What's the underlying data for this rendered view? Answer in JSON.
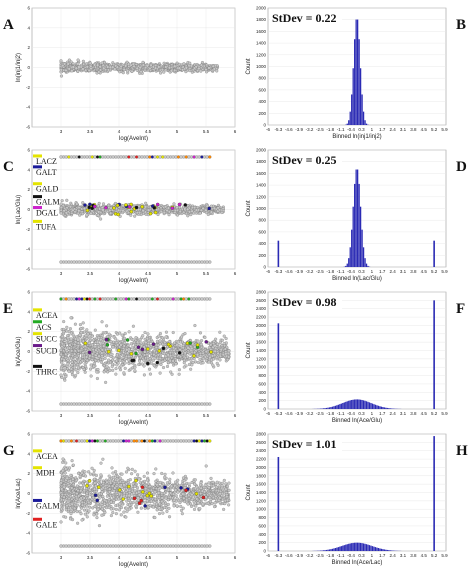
{
  "figure": {
    "rows": [
      {
        "ma": {
          "letter": "A",
          "ylabel": "ln(inj1/inj2)",
          "xlabel": "log(AveInt)",
          "xlim": [
            2.5,
            6.0
          ],
          "ylim": [
            -6,
            6
          ],
          "xticks": [
            "3",
            "3.5",
            "4",
            "4.5",
            "5",
            "5.5",
            "6"
          ],
          "yticks": [
            "6",
            "4",
            "2",
            "0",
            "-2",
            "-4",
            "-6"
          ],
          "cloud": {
            "x0": 3.0,
            "x1": 5.7,
            "spread0": 0.45,
            "spread1": 0.3,
            "count": 900
          },
          "top_row_y": null,
          "bottom_row_y": null,
          "genes": []
        },
        "hist": {
          "letter": "B",
          "stdev_text": "StDev = 0.22",
          "ylabel": "Count",
          "xlabel": "Binned ln(inj1/inj2)",
          "xticks": [
            "-6",
            "-5.3",
            "-4.6",
            "-3.9",
            "-3.2",
            "-2.5",
            "-1.8",
            "-1.1",
            "-0.4",
            "0.3",
            "1",
            "1.7",
            "2.4",
            "3.1",
            "3.8",
            "4.5",
            "5.2",
            "5.9"
          ],
          "xlim": [
            -6,
            6
          ],
          "ylim": [
            0,
            2000
          ],
          "yticks": [
            "2000",
            "1800",
            "1600",
            "1400",
            "1200",
            "1000",
            "800",
            "600",
            "400",
            "200",
            "0"
          ],
          "sd": 0.22,
          "peak": 1850,
          "edge_bars": []
        }
      },
      {
        "ma": {
          "letter": "C",
          "ylabel": "ln(Lac/Glu)",
          "xlabel": "log(AveInt)",
          "xlim": [
            2.5,
            6.0
          ],
          "ylim": [
            -6,
            6
          ],
          "xticks": [
            "3",
            "3.5",
            "4",
            "4.5",
            "5",
            "5.5",
            "6"
          ],
          "yticks": [
            "6",
            "4",
            "2",
            "0",
            "-2",
            "-4",
            "-6"
          ],
          "cloud": {
            "x0": 3.0,
            "x1": 5.8,
            "spread0": 0.5,
            "spread1": 0.35,
            "count": 900
          },
          "top_row_y": 5.3,
          "bottom_row_y": -5.3,
          "genes": [
            {
              "name": "LACZ",
              "y": 5.4,
              "color": "#e4e400"
            },
            {
              "name": "GALT",
              "y": 4.3,
              "color": "#1a1a9a"
            },
            {
              "name": "GALD",
              "y": 2.6,
              "color": "#e4e400"
            },
            {
              "name": "GALM",
              "y": 1.3,
              "color": "#111111"
            },
            {
              "name": "DGAL",
              "y": 0.2,
              "color": "#cc22cc"
            },
            {
              "name": "TUFA",
              "y": -1.2,
              "color": "#e4e400"
            }
          ]
        },
        "hist": {
          "letter": "D",
          "stdev_text": "StDev = 0.25",
          "ylabel": "Count",
          "xlabel": "Binned ln(Lac/Glu)",
          "xticks": [
            "-6",
            "-5.3",
            "-4.6",
            "-3.9",
            "-3.2",
            "-2.5",
            "-1.8",
            "-1.1",
            "-0.4",
            "0.3",
            "1",
            "1.7",
            "2.4",
            "3.1",
            "3.8",
            "4.5",
            "5.2",
            "5.9"
          ],
          "xlim": [
            -6,
            6
          ],
          "ylim": [
            0,
            2000
          ],
          "yticks": [
            "2000",
            "1800",
            "1600",
            "1400",
            "1200",
            "1000",
            "800",
            "600",
            "400",
            "200",
            "0"
          ],
          "sd": 0.25,
          "peak": 1700,
          "edge_bars": [
            {
              "x": -5.3,
              "count": 450
            },
            {
              "x": 5.2,
              "count": 450
            }
          ]
        }
      },
      {
        "ma": {
          "letter": "E",
          "ylabel": "ln(Ace/Glu)",
          "xlabel": "log(AveInt)",
          "xlim": [
            2.5,
            6.0
          ],
          "ylim": [
            -6,
            6
          ],
          "xticks": [
            "3",
            "3.5",
            "4",
            "4.5",
            "5",
            "5.5",
            "6"
          ],
          "yticks": [
            "6",
            "4",
            "2",
            "0",
            "-2",
            "-4",
            "-6"
          ],
          "cloud": {
            "x0": 3.0,
            "x1": 5.9,
            "spread0": 2.2,
            "spread1": 1.0,
            "count": 1400
          },
          "top_row_y": 5.3,
          "bottom_row_y": -5.3,
          "genes": [
            {
              "name": "ACEA",
              "y": 4.2,
              "color": "#e4e400"
            },
            {
              "name": "ACS",
              "y": 3.0,
              "color": "#22aa22"
            },
            {
              "name": "SUCC",
              "y": 1.8,
              "color": "#e4e400"
            },
            {
              "name": "SUCD",
              "y": 0.6,
              "color": "#6a1a8a"
            },
            {
              "name": "THRC",
              "y": -1.5,
              "color": "#111111"
            }
          ]
        },
        "hist": {
          "letter": "F",
          "stdev_text": "StDev = 0.98",
          "ylabel": "Count",
          "xlabel": "Binned ln(Ace/Glu)",
          "xticks": [
            "-6",
            "-5.3",
            "-4.6",
            "-3.9",
            "-3.2",
            "-2.5",
            "-1.8",
            "-1.1",
            "-0.4",
            "0.3",
            "1",
            "1.7",
            "2.4",
            "3.1",
            "3.8",
            "4.5",
            "5.2",
            "5.9"
          ],
          "xlim": [
            -6,
            6
          ],
          "ylim": [
            0,
            2800
          ],
          "yticks": [
            "2800",
            "2600",
            "2400",
            "2200",
            "2000",
            "1800",
            "1600",
            "1400",
            "1200",
            "1000",
            "800",
            "600",
            "400",
            "200",
            "0"
          ],
          "sd": 0.98,
          "peak": 230,
          "edge_bars": [
            {
              "x": -5.3,
              "count": 2050
            },
            {
              "x": 5.2,
              "count": 2600
            }
          ]
        }
      },
      {
        "ma": {
          "letter": "G",
          "ylabel": "ln(Ace/Lac)",
          "xlabel": "log(AveInt)",
          "xlim": [
            2.5,
            6.0
          ],
          "ylim": [
            -6,
            6
          ],
          "xticks": [
            "3",
            "3.5",
            "4",
            "4.5",
            "5",
            "5.5",
            "6"
          ],
          "yticks": [
            "6",
            "4",
            "2",
            "0",
            "-2",
            "-4",
            "-6"
          ],
          "cloud": {
            "x0": 3.0,
            "x1": 5.9,
            "spread0": 2.3,
            "spread1": 1.0,
            "count": 1400
          },
          "top_row_y": 5.3,
          "bottom_row_y": -5.3,
          "genes": [
            {
              "name": "ACEA",
              "y": 4.3,
              "color": "#e4e400"
            },
            {
              "name": "MDH",
              "y": 2.6,
              "color": "#e4e400"
            },
            {
              "name": "GALM",
              "y": -0.7,
              "color": "#1a1a9a"
            },
            {
              "name": "GALE",
              "y": -2.6,
              "color": "#e02020"
            }
          ]
        },
        "hist": {
          "letter": "H",
          "stdev_text": "StDev = 1.01",
          "ylabel": "Count",
          "xlabel": "Binned ln(Ace/Lac)",
          "xticks": [
            "-6",
            "-5.3",
            "-4.6",
            "-3.9",
            "-3.2",
            "-2.5",
            "-1.8",
            "-1.1",
            "-0.4",
            "0.3",
            "1",
            "1.7",
            "2.4",
            "3.1",
            "3.8",
            "4.5",
            "5.2",
            "5.9"
          ],
          "xlim": [
            -6,
            6
          ],
          "ylim": [
            0,
            2800
          ],
          "yticks": [
            "2800",
            "2600",
            "2400",
            "2200",
            "2000",
            "1800",
            "1600",
            "1400",
            "1200",
            "1000",
            "800",
            "600",
            "400",
            "200",
            "0"
          ],
          "sd": 1.01,
          "peak": 200,
          "edge_bars": [
            {
              "x": -5.3,
              "count": 2250
            },
            {
              "x": 5.2,
              "count": 2750
            }
          ]
        }
      }
    ]
  },
  "colors": {
    "bar": "#2a2ab4",
    "dot_fill": "#c8c8c8",
    "dot_stroke": "#6e6e6e",
    "highlight_palette": [
      "#e02020",
      "#e4e400",
      "#22aa22",
      "#1a1a9a",
      "#111111",
      "#cc22cc",
      "#ff8800"
    ]
  },
  "chart_data": [
    {
      "type": "scatter",
      "panel": "A",
      "xlabel": "log(AveInt)",
      "ylabel": "ln(inj1/inj2)",
      "xlim": [
        2.5,
        6.0
      ],
      "ylim": [
        -6,
        6
      ],
      "x_range": [
        3.0,
        5.7
      ],
      "y_center": 0,
      "y_spread": 0.45
    },
    {
      "type": "bar",
      "panel": "B",
      "title": "StDev = 0.22",
      "xlabel": "Binned ln(inj1/inj2)",
      "ylabel": "Count",
      "center": 0,
      "stdev": 0.22,
      "peak_count": 1850,
      "ylim": [
        0,
        2000
      ]
    },
    {
      "type": "scatter",
      "panel": "C",
      "xlabel": "log(AveInt)",
      "ylabel": "ln(Lac/Glu)",
      "xlim": [
        2.5,
        6.0
      ],
      "ylim": [
        -6,
        6
      ],
      "labels": [
        "LACZ",
        "GALT",
        "GALD",
        "GALM",
        "DGAL",
        "TUFA"
      ]
    },
    {
      "type": "bar",
      "panel": "D",
      "title": "StDev = 0.25",
      "xlabel": "Binned ln(Lac/Glu)",
      "ylabel": "Count",
      "center": 0,
      "stdev": 0.25,
      "peak_count": 1700,
      "edge_counts": {
        "-5.3": 450,
        "5.2": 450
      },
      "ylim": [
        0,
        2000
      ]
    },
    {
      "type": "scatter",
      "panel": "E",
      "xlabel": "log(AveInt)",
      "ylabel": "ln(Ace/Glu)",
      "xlim": [
        2.5,
        6.0
      ],
      "ylim": [
        -6,
        6
      ],
      "labels": [
        "ACEA",
        "ACS",
        "SUCC",
        "SUCD",
        "THRC"
      ]
    },
    {
      "type": "bar",
      "panel": "F",
      "title": "StDev = 0.98",
      "xlabel": "Binned ln(Ace/Glu)",
      "ylabel": "Count",
      "center": 0,
      "stdev": 0.98,
      "peak_count": 230,
      "edge_counts": {
        "-5.3": 2050,
        "5.2": 2600
      },
      "ylim": [
        0,
        2800
      ]
    },
    {
      "type": "scatter",
      "panel": "G",
      "xlabel": "log(AveInt)",
      "ylabel": "ln(Ace/Lac)",
      "xlim": [
        2.5,
        6.0
      ],
      "ylim": [
        -6,
        6
      ],
      "labels": [
        "ACEA",
        "MDH",
        "GALM",
        "GALE"
      ]
    },
    {
      "type": "bar",
      "panel": "H",
      "title": "StDev = 1.01",
      "xlabel": "Binned ln(Ace/Lac)",
      "ylabel": "Count",
      "center": 0,
      "stdev": 1.01,
      "peak_count": 200,
      "edge_counts": {
        "-5.3": 2250,
        "5.2": 2750
      },
      "ylim": [
        0,
        2800
      ]
    }
  ]
}
